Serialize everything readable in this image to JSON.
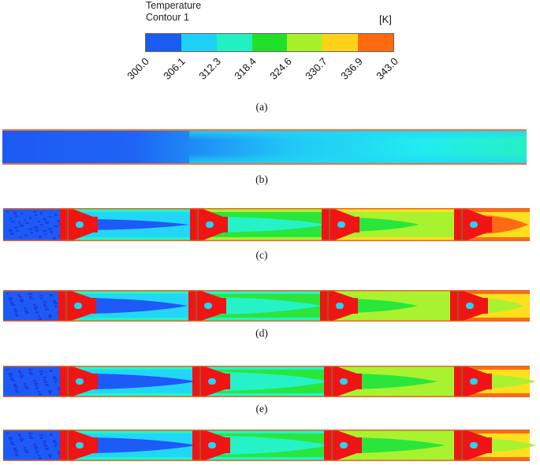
{
  "legend": {
    "title": "Temperature",
    "subtitle": "Contour 1",
    "unit": "[K]",
    "ticks": [
      "300.0",
      "306.1",
      "312.3",
      "318.4",
      "324.6",
      "330.7",
      "336.9",
      "343.0"
    ],
    "colors": [
      "#1a5cf0",
      "#1fd0f5",
      "#22f0c0",
      "#22e02a",
      "#a8f02a",
      "#ffd21a",
      "#ff6a10"
    ]
  },
  "captions": {
    "a": "(a)",
    "b": "(b)",
    "c": "(c)",
    "d": "(d)",
    "e": "(e)"
  },
  "panel_colors": {
    "deep_blue": "#1e5af5",
    "dark_blue": "#1d3fe0",
    "cyan": "#22d6f7",
    "aqua": "#26f2c8",
    "green": "#2ae63a",
    "lime": "#a9f230",
    "yellow": "#ffdf1e",
    "orange": "#ff6a14",
    "red": "#f01414",
    "wall": "#9c5a2a"
  }
}
